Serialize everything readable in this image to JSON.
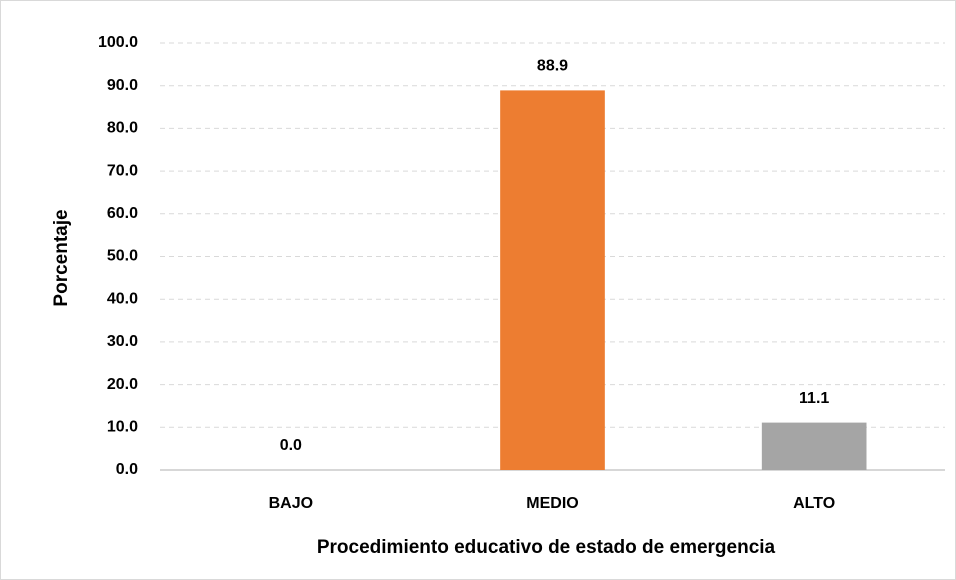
{
  "chart_data": {
    "type": "bar",
    "x_label": "Procedimiento educativo de estado de emergencia",
    "y_label": "Porcentaje",
    "categories": [
      "BAJO",
      "MEDIO",
      "ALTO"
    ],
    "values": [
      0,
      88.9,
      11.1
    ],
    "value_labels": [
      "0.0",
      "88.9",
      "11.1"
    ],
    "colors": [
      "#4472c4",
      "#ed7d31",
      "#a5a5a5"
    ],
    "ylim": [
      0,
      100
    ],
    "yticks": [
      {
        "value": 0,
        "label": "0.0"
      },
      {
        "value": 10,
        "label": "10.0"
      },
      {
        "value": 20,
        "label": "20.0"
      },
      {
        "value": 30,
        "label": "30.0"
      },
      {
        "value": 40,
        "label": "40.0"
      },
      {
        "value": 50,
        "label": "50.0"
      },
      {
        "value": 60,
        "label": "60.0"
      },
      {
        "value": 70,
        "label": "70.0"
      },
      {
        "value": 80,
        "label": "80.0"
      },
      {
        "value": 90,
        "label": "90.0"
      },
      {
        "value": 100,
        "label": "100.0"
      }
    ],
    "grid": true
  }
}
